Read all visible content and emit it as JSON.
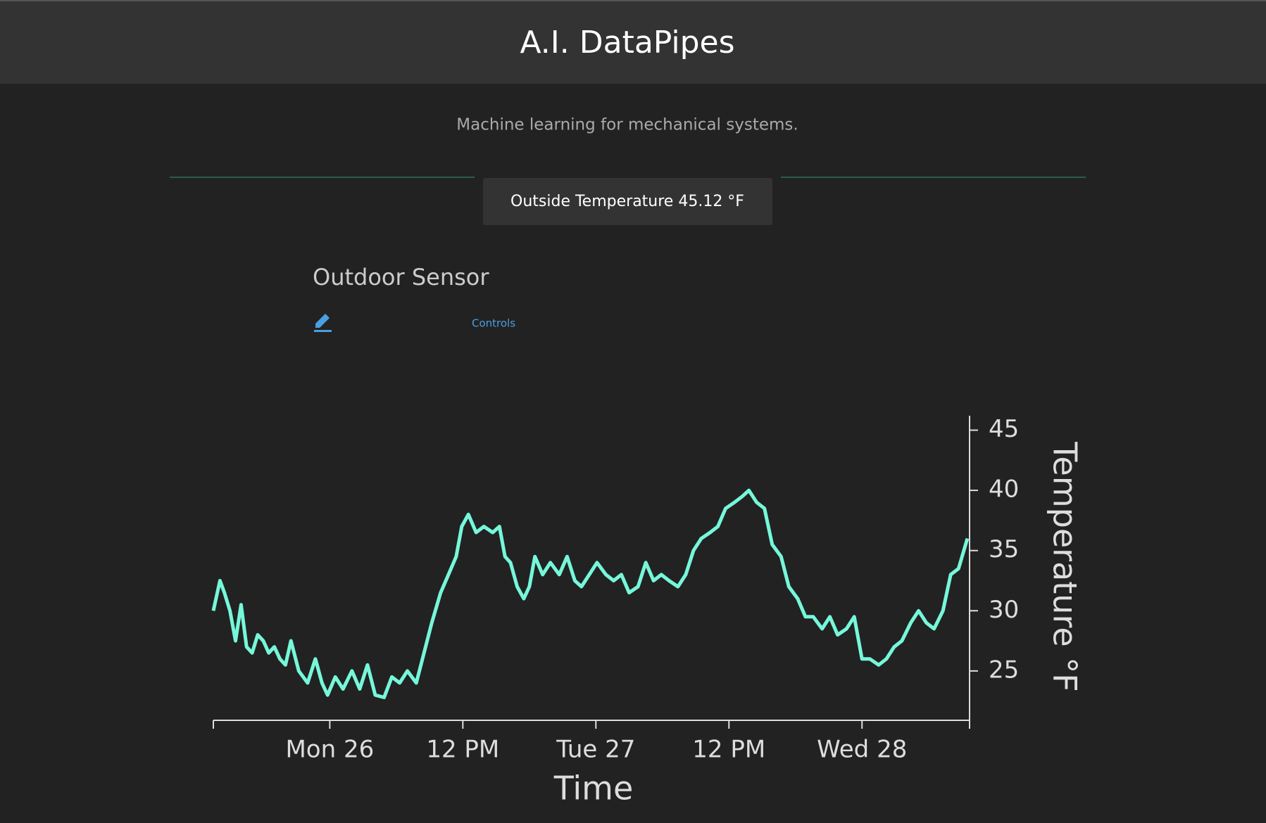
{
  "header": {
    "title": "A.I. DataPipes",
    "subtitle": "Machine learning for mechanical systems."
  },
  "status": {
    "label": "Outside Temperature 45.12 °F"
  },
  "sensor": {
    "name": "Outdoor Sensor",
    "controls": "Controls"
  },
  "chart_data": {
    "type": "line",
    "x_label": "Time",
    "y_label": "Temperature °F",
    "color": "#76f7da",
    "x": [
      -10.5,
      -9.9,
      -9.5,
      -9,
      -8.5,
      -8,
      -7.5,
      -7,
      -6.5,
      -6,
      -5.5,
      -5,
      -4.5,
      -4,
      -3.5,
      -2.8,
      -2,
      -1.3,
      -0.7,
      -0.2,
      0.5,
      1.2,
      2,
      2.7,
      3.4,
      4.1,
      4.9,
      5.6,
      6.3,
      7,
      7.8,
      8.5,
      9.2,
      10,
      10.7,
      11.4,
      11.9,
      12.5,
      13.2,
      13.9,
      14.7,
      15.3,
      15.8,
      16.3,
      16.9,
      17.5,
      18,
      18.5,
      19.2,
      19.9,
      20.7,
      21.4,
      22.1,
      22.7,
      23.4,
      24.1,
      24.9,
      25.6,
      26.3,
      27,
      27.8,
      28.5,
      29.2,
      29.9,
      30.6,
      31.4,
      32.1,
      32.8,
      33.5,
      34.3,
      35,
      35.7,
      36.5,
      37.2,
      37.8,
      38.5,
      39.2,
      39.9,
      40.7,
      41.4,
      42.2,
      42.9,
      43.6,
      44.4,
      45.1,
      45.8,
      46.6,
      47.3,
      48,
      48.7,
      49.5,
      50.2,
      50.9,
      51.6,
      52.4,
      53.1,
      53.8,
      54.5,
      55.3,
      56,
      56.7,
      57.5
    ],
    "values": [
      30,
      32.5,
      31.5,
      30,
      27.5,
      30.5,
      27,
      26.5,
      28,
      27.5,
      26.5,
      27,
      26,
      25.5,
      27.5,
      25,
      24,
      26,
      24,
      23,
      24.5,
      23.5,
      25,
      23.5,
      25.5,
      23,
      22.8,
      24.5,
      24,
      25,
      24,
      26.5,
      29,
      31.5,
      33,
      34.5,
      37,
      38,
      36.5,
      37,
      36.5,
      37,
      34.5,
      34,
      32,
      31,
      32,
      34.5,
      33,
      34,
      33,
      34.5,
      32.5,
      32,
      33,
      34,
      33,
      32.5,
      33,
      31.5,
      32,
      34,
      32.5,
      33,
      32.5,
      32,
      33,
      35,
      36,
      36.5,
      37,
      38.5,
      39,
      39.5,
      40,
      39,
      38.5,
      35.5,
      34.5,
      32,
      31,
      29.5,
      29.5,
      28.5,
      29.5,
      28,
      28.5,
      29.5,
      26,
      26,
      25.5,
      26,
      27,
      27.5,
      29,
      30,
      29,
      28.5,
      30,
      33,
      33.5,
      36
    ],
    "xlim": [
      -10.5,
      57.7
    ],
    "xticks": [
      {
        "value": 0,
        "label": "Mon 26"
      },
      {
        "value": 12,
        "label": "12 PM"
      },
      {
        "value": 24,
        "label": "Tue 27"
      },
      {
        "value": 36,
        "label": "12 PM"
      },
      {
        "value": 48,
        "label": "Wed 28"
      }
    ],
    "ylim": [
      20.9,
      46.2
    ],
    "yticks": [
      25,
      30,
      35,
      40,
      45
    ],
    "grid": false
  }
}
